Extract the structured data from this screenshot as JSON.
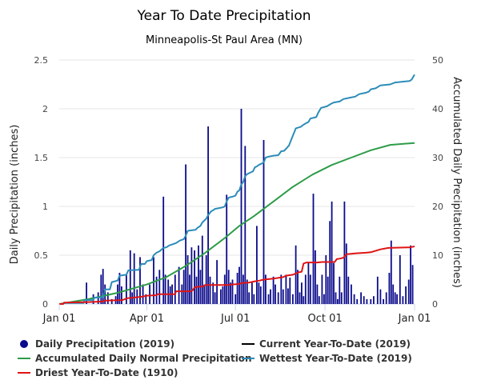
{
  "chart_data": {
    "type": "bar+line",
    "title": "Year To Date Precipitation",
    "subtitle": "Minneapolis-St Paul Area (MN)",
    "ylabel_left": "Daily Precipitation (inches)",
    "ylabel_right": "Accumulated Daily Precipitation (inches)",
    "ylim_left": [
      0,
      2.5
    ],
    "ylim_right": [
      0,
      50
    ],
    "yticks_left": [
      "0",
      "0.5",
      "1",
      "1.5",
      "2",
      "2.5"
    ],
    "yticks_right": [
      "0",
      "10",
      "20",
      "30",
      "40",
      "50"
    ],
    "xlim_days": [
      0,
      365
    ],
    "xticks": [
      {
        "day": 0,
        "label": "Jan 01"
      },
      {
        "day": 90,
        "label": "Apr 01"
      },
      {
        "day": 181,
        "label": "Jul 01"
      },
      {
        "day": 273,
        "label": "Oct 01"
      },
      {
        "day": 365,
        "label": "Jan 01"
      }
    ],
    "grid": true,
    "daily_precipitation": {
      "name": "Daily Precipitation (2019)",
      "color": "#0b0b8c",
      "points": [
        [
          28,
          0.22
        ],
        [
          35,
          0.1
        ],
        [
          40,
          0.12
        ],
        [
          43,
          0.3
        ],
        [
          45,
          0.36
        ],
        [
          47,
          0.2
        ],
        [
          50,
          0.12
        ],
        [
          54,
          0.05
        ],
        [
          58,
          0.08
        ],
        [
          60,
          0.2
        ],
        [
          62,
          0.32
        ],
        [
          64,
          0.18
        ],
        [
          69,
          0.3
        ],
        [
          73,
          0.55
        ],
        [
          75,
          0.12
        ],
        [
          77,
          0.52
        ],
        [
          80,
          0.15
        ],
        [
          83,
          0.48
        ],
        [
          86,
          0.2
        ],
        [
          89,
          0.1
        ],
        [
          93,
          0.2
        ],
        [
          97,
          0.48
        ],
        [
          100,
          0.28
        ],
        [
          103,
          0.35
        ],
        [
          107,
          1.1
        ],
        [
          109,
          0.3
        ],
        [
          112,
          0.25
        ],
        [
          114,
          0.18
        ],
        [
          116,
          0.2
        ],
        [
          119,
          0.3
        ],
        [
          123,
          0.38
        ],
        [
          126,
          0.2
        ],
        [
          128,
          0.35
        ],
        [
          130,
          1.43
        ],
        [
          132,
          0.5
        ],
        [
          134,
          0.3
        ],
        [
          136,
          0.58
        ],
        [
          139,
          0.55
        ],
        [
          141,
          0.28
        ],
        [
          143,
          0.6
        ],
        [
          145,
          0.35
        ],
        [
          147,
          0.7
        ],
        [
          149,
          0.2
        ],
        [
          151,
          0.5
        ],
        [
          153,
          1.82
        ],
        [
          155,
          0.28
        ],
        [
          158,
          0.22
        ],
        [
          160,
          0.12
        ],
        [
          162,
          0.45
        ],
        [
          166,
          0.15
        ],
        [
          168,
          0.18
        ],
        [
          170,
          0.3
        ],
        [
          172,
          1.12
        ],
        [
          174,
          0.35
        ],
        [
          176,
          0.22
        ],
        [
          178,
          0.25
        ],
        [
          181,
          0.1
        ],
        [
          183,
          0.32
        ],
        [
          185,
          0.38
        ],
        [
          187,
          2.0
        ],
        [
          189,
          0.3
        ],
        [
          191,
          1.62
        ],
        [
          193,
          0.25
        ],
        [
          195,
          0.12
        ],
        [
          198,
          0.22
        ],
        [
          200,
          0.1
        ],
        [
          203,
          0.8
        ],
        [
          205,
          0.22
        ],
        [
          207,
          0.18
        ],
        [
          210,
          1.68
        ],
        [
          212,
          0.3
        ],
        [
          215,
          0.1
        ],
        [
          217,
          0.15
        ],
        [
          220,
          0.28
        ],
        [
          222,
          0.2
        ],
        [
          225,
          0.12
        ],
        [
          228,
          0.3
        ],
        [
          230,
          0.15
        ],
        [
          233,
          0.3
        ],
        [
          235,
          0.16
        ],
        [
          237,
          0.27
        ],
        [
          240,
          0.1
        ],
        [
          243,
          0.6
        ],
        [
          245,
          0.35
        ],
        [
          247,
          0.12
        ],
        [
          249,
          0.22
        ],
        [
          251,
          0.08
        ],
        [
          253,
          0.3
        ],
        [
          256,
          0.42
        ],
        [
          258,
          0.3
        ],
        [
          261,
          1.13
        ],
        [
          263,
          0.55
        ],
        [
          265,
          0.2
        ],
        [
          267,
          0.08
        ],
        [
          270,
          0.3
        ],
        [
          272,
          0.1
        ],
        [
          274,
          0.5
        ],
        [
          276,
          0.28
        ],
        [
          278,
          0.85
        ],
        [
          280,
          1.05
        ],
        [
          282,
          0.42
        ],
        [
          284,
          0.12
        ],
        [
          286,
          0.05
        ],
        [
          288,
          0.28
        ],
        [
          290,
          0.12
        ],
        [
          293,
          1.05
        ],
        [
          295,
          0.62
        ],
        [
          297,
          0.28
        ],
        [
          300,
          0.2
        ],
        [
          303,
          0.1
        ],
        [
          306,
          0.05
        ],
        [
          310,
          0.12
        ],
        [
          313,
          0.08
        ],
        [
          316,
          0.05
        ],
        [
          320,
          0.05
        ],
        [
          323,
          0.08
        ],
        [
          327,
          0.28
        ],
        [
          330,
          0.15
        ],
        [
          333,
          0.05
        ],
        [
          336,
          0.12
        ],
        [
          339,
          0.32
        ],
        [
          341,
          0.65
        ],
        [
          343,
          0.2
        ],
        [
          345,
          0.12
        ],
        [
          347,
          0.1
        ],
        [
          350,
          0.5
        ],
        [
          353,
          0.08
        ],
        [
          356,
          0.18
        ],
        [
          359,
          0.25
        ],
        [
          361,
          0.6
        ],
        [
          363,
          0.4
        ]
      ]
    },
    "series": [
      {
        "name": "Accumulated Daily Normal Precipitation",
        "color": "#2e9c48",
        "points": [
          [
            0,
            0
          ],
          [
            30,
            1
          ],
          [
            60,
            2.3
          ],
          [
            90,
            4
          ],
          [
            110,
            5.5
          ],
          [
            130,
            7.8
          ],
          [
            150,
            10.5
          ],
          [
            170,
            13.5
          ],
          [
            185,
            16
          ],
          [
            200,
            18
          ],
          [
            220,
            21
          ],
          [
            240,
            24
          ],
          [
            260,
            26.5
          ],
          [
            280,
            28.5
          ],
          [
            300,
            30
          ],
          [
            320,
            31.5
          ],
          [
            340,
            32.6
          ],
          [
            365,
            33
          ]
        ]
      },
      {
        "name": "Wettest Year-To-Date (2019)",
        "color": "#2c8cb8",
        "points": [
          [
            0,
            0
          ],
          [
            4,
            0
          ],
          [
            5,
            0.2
          ],
          [
            25,
            0.2
          ],
          [
            26,
            0.8
          ],
          [
            35,
            0.8
          ],
          [
            36,
            1.3
          ],
          [
            45,
            1.4
          ],
          [
            47,
            3
          ],
          [
            52,
            3
          ],
          [
            54,
            4.5
          ],
          [
            60,
            4.8
          ],
          [
            62,
            5.8
          ],
          [
            69,
            6
          ],
          [
            71,
            6.9
          ],
          [
            82,
            7
          ],
          [
            84,
            8.2
          ],
          [
            88,
            8.2
          ],
          [
            90,
            8.8
          ],
          [
            95,
            9
          ],
          [
            97,
            10
          ],
          [
            100,
            10.5
          ],
          [
            103,
            10.8
          ],
          [
            107,
            11.5
          ],
          [
            110,
            11.6
          ],
          [
            113,
            12
          ],
          [
            120,
            12.5
          ],
          [
            124,
            13
          ],
          [
            128,
            13.3
          ],
          [
            130,
            14
          ],
          [
            132,
            15
          ],
          [
            140,
            15.2
          ],
          [
            142,
            15.6
          ],
          [
            145,
            16
          ],
          [
            147,
            16.7
          ],
          [
            151,
            17.5
          ],
          [
            153,
            18.2
          ],
          [
            156,
            19
          ],
          [
            158,
            19.2
          ],
          [
            160,
            19.5
          ],
          [
            168,
            19.8
          ],
          [
            170,
            20
          ],
          [
            172,
            21
          ],
          [
            174,
            21.8
          ],
          [
            178,
            22
          ],
          [
            181,
            22.2
          ],
          [
            183,
            23
          ],
          [
            185,
            23.3
          ],
          [
            187,
            24.5
          ],
          [
            189,
            25
          ],
          [
            191,
            26.2
          ],
          [
            193,
            26.6
          ],
          [
            195,
            26.8
          ],
          [
            199,
            27.2
          ],
          [
            201,
            28
          ],
          [
            203,
            28.2
          ],
          [
            205,
            28.5
          ],
          [
            210,
            29
          ],
          [
            212,
            30
          ],
          [
            215,
            30.2
          ],
          [
            220,
            30.4
          ],
          [
            225,
            30.5
          ],
          [
            228,
            31.3
          ],
          [
            231,
            31.4
          ],
          [
            233,
            31.8
          ],
          [
            236,
            32.5
          ],
          [
            237,
            33
          ],
          [
            239,
            34
          ],
          [
            242,
            35.5
          ],
          [
            243,
            36
          ],
          [
            248,
            36.3
          ],
          [
            250,
            36.6
          ],
          [
            253,
            37
          ],
          [
            256,
            37.3
          ],
          [
            258,
            38
          ],
          [
            264,
            38.3
          ],
          [
            266,
            39.2
          ],
          [
            269,
            40.2
          ],
          [
            275,
            40.5
          ],
          [
            279,
            41
          ],
          [
            282,
            41.3
          ],
          [
            288,
            41.5
          ],
          [
            292,
            42
          ],
          [
            299,
            42.3
          ],
          [
            304,
            42.5
          ],
          [
            308,
            43
          ],
          [
            315,
            43.3
          ],
          [
            318,
            43.5
          ],
          [
            320,
            44
          ],
          [
            325,
            44.2
          ],
          [
            330,
            44.8
          ],
          [
            340,
            45
          ],
          [
            345,
            45.4
          ],
          [
            360,
            45.7
          ],
          [
            362,
            46
          ],
          [
            365,
            47
          ]
        ]
      },
      {
        "name": "Driest Year-To-Date (1910)",
        "color": "#e01414",
        "points": [
          [
            0,
            0
          ],
          [
            4,
            0
          ],
          [
            5,
            0.3
          ],
          [
            30,
            0.4
          ],
          [
            45,
            0.5
          ],
          [
            47,
            0.7
          ],
          [
            65,
            0.8
          ],
          [
            70,
            1.2
          ],
          [
            85,
            1.5
          ],
          [
            90,
            1.7
          ],
          [
            100,
            1.8
          ],
          [
            101,
            2
          ],
          [
            119,
            2
          ],
          [
            120,
            2.6
          ],
          [
            135,
            2.6
          ],
          [
            137,
            2.8
          ],
          [
            139,
            3.4
          ],
          [
            141,
            3.5
          ],
          [
            148,
            3.6
          ],
          [
            150,
            3.9
          ],
          [
            175,
            3.9
          ],
          [
            177,
            4
          ],
          [
            185,
            4.1
          ],
          [
            187,
            4.3
          ],
          [
            195,
            4.4
          ],
          [
            200,
            4.6
          ],
          [
            206,
            4.8
          ],
          [
            210,
            5
          ],
          [
            220,
            5.2
          ],
          [
            226,
            5.4
          ],
          [
            230,
            5.5
          ],
          [
            233,
            5.8
          ],
          [
            240,
            6
          ],
          [
            246,
            6.5
          ],
          [
            249,
            6.6
          ],
          [
            251,
            8.3
          ],
          [
            254,
            8.5
          ],
          [
            265,
            8.5
          ],
          [
            270,
            8.6
          ],
          [
            283,
            8.6
          ],
          [
            285,
            9.2
          ],
          [
            288,
            9.3
          ],
          [
            292,
            9.5
          ],
          [
            295,
            10.2
          ],
          [
            300,
            10.3
          ],
          [
            305,
            10.4
          ],
          [
            315,
            10.5
          ],
          [
            320,
            10.6
          ],
          [
            330,
            11.2
          ],
          [
            338,
            11.5
          ],
          [
            360,
            11.6
          ],
          [
            365,
            11.8
          ]
        ]
      },
      {
        "name": "Current Year-To-Date (2019)",
        "color": "#000000",
        "points": []
      }
    ],
    "legend": [
      {
        "label": "Daily Precipitation (2019)",
        "kind": "dot",
        "color": "#0b0b8c"
      },
      {
        "label": "Current Year-To-Date (2019)",
        "kind": "line",
        "color": "#000000"
      },
      {
        "label": "Accumulated Daily Normal Precipitation",
        "kind": "line",
        "color": "#2e9c48"
      },
      {
        "label": "Wettest Year-To-Date (2019)",
        "kind": "line",
        "color": "#2c8cb8"
      },
      {
        "label": "Driest Year-To-Date (1910)",
        "kind": "line",
        "color": "#e01414"
      }
    ]
  }
}
